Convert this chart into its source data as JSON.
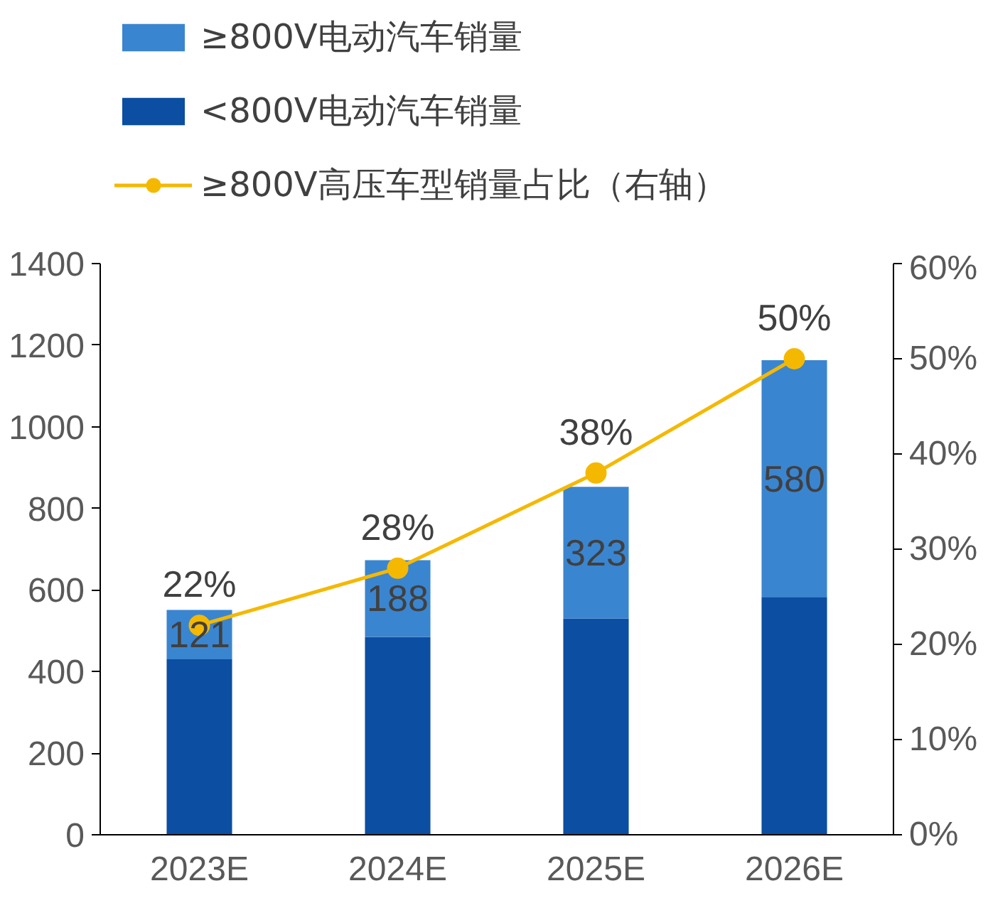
{
  "chart_data": {
    "type": "bar",
    "stacked": true,
    "categories": [
      "2023E",
      "2024E",
      "2025E",
      "2026E"
    ],
    "series": [
      {
        "name": "<800V电动汽车销量",
        "color": "#0b4ea2",
        "values": [
          430,
          485,
          530,
          583
        ]
      },
      {
        "name": "≥800V电动汽车销量",
        "color": "#3a85d0",
        "values": [
          121,
          188,
          323,
          580
        ],
        "value_labels": [
          "121",
          "188",
          "323",
          "580"
        ]
      },
      {
        "name": "≥800V高压车型销量占比（右轴）",
        "type": "line",
        "axis": "y2",
        "color": "#f5b800",
        "marker": "circle",
        "values": [
          22,
          28,
          38,
          50
        ],
        "value_labels": [
          "22%",
          "28%",
          "38%",
          "50%"
        ]
      }
    ],
    "ylim": [
      0,
      1400
    ],
    "yticks": [
      0,
      200,
      400,
      600,
      800,
      1000,
      1200,
      1400
    ],
    "y2lim": [
      0,
      60
    ],
    "y2ticks": [
      {
        "value": 0,
        "label": "0%"
      },
      {
        "value": 10,
        "label": "10%"
      },
      {
        "value": 20,
        "label": "20%"
      },
      {
        "value": 30,
        "label": "30%"
      },
      {
        "value": 40,
        "label": "40%"
      },
      {
        "value": 50,
        "label": "50%"
      },
      {
        "value": 60,
        "label": "60%"
      }
    ],
    "grid": false,
    "legend": "top"
  }
}
